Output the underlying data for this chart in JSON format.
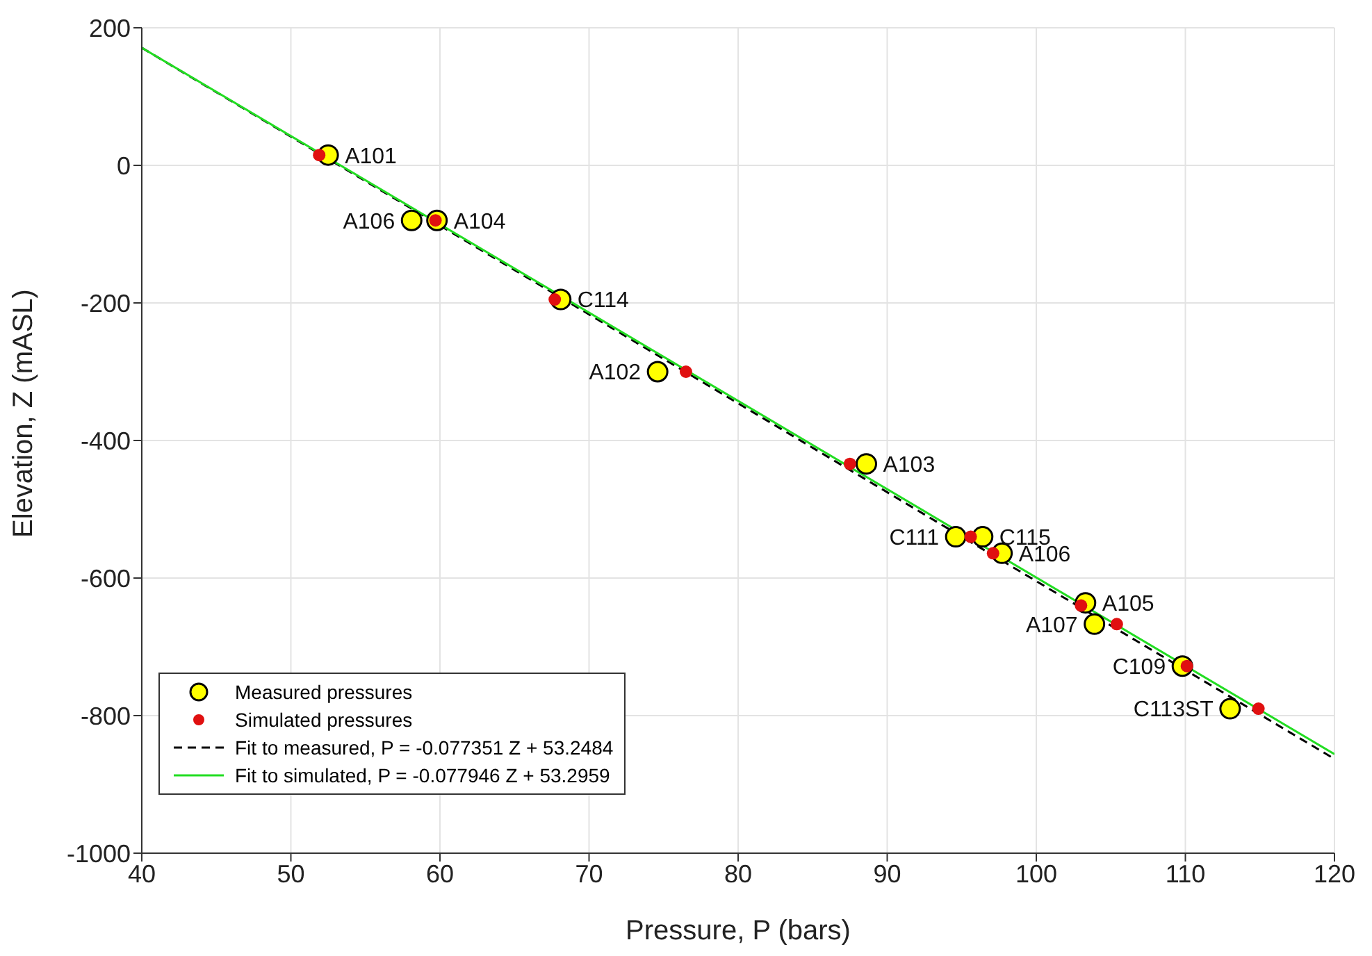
{
  "chart_data": {
    "type": "scatter",
    "xlabel": "Pressure, P (bars)",
    "ylabel": "Elevation, Z (mASL)",
    "xlim": [
      40,
      120
    ],
    "xticks": [
      40,
      50,
      60,
      70,
      80,
      90,
      100,
      110,
      120
    ],
    "ylim": [
      -1000,
      200
    ],
    "yticks": [
      -1000,
      -800,
      -600,
      -400,
      -200,
      0,
      200
    ],
    "grid": true,
    "legend": "bottom left",
    "series": [
      {
        "name": "Measured pressures",
        "marker": "circle",
        "color": "#ffff00",
        "x": [
          52.5,
          58.1,
          59.8,
          68.1,
          74.6,
          88.6,
          94.6,
          96.4,
          97.7,
          103.3,
          103.9,
          109.8,
          113.0
        ],
        "values": [
          15,
          -80,
          -80,
          -195,
          -300,
          -434,
          -540,
          -540,
          -564,
          -636,
          -667,
          -728,
          -790
        ]
      },
      {
        "name": "Simulated pressures",
        "marker": "circle",
        "color": "#e01010",
        "x": [
          51.9,
          59.6,
          59.7,
          67.7,
          76.5,
          87.5,
          95.3,
          95.6,
          97.1,
          103.0,
          105.4,
          110.1,
          114.9
        ],
        "values": [
          15,
          null,
          -80,
          -195,
          -300,
          -434,
          null,
          -540,
          -564,
          -640,
          -667,
          -728,
          -790
        ]
      },
      {
        "name": "Fit to measured, P = -0.077351 Z + 53.2484",
        "type": "line",
        "line_style": "dashed",
        "color": "#000000",
        "x": [
          40,
          120
        ],
        "values": [
          171,
          -863
        ]
      },
      {
        "name": "Fit to simulated, P = -0.077946 Z + 53.2959",
        "type": "line",
        "line_style": "solid",
        "color": "#22dd22",
        "x": [
          40,
          120
        ],
        "values": [
          171,
          -856
        ]
      }
    ],
    "annotations": [
      {
        "text": "A101",
        "x": 52.5,
        "y": 15
      },
      {
        "text": "A106",
        "x": 58.1,
        "y": -80
      },
      {
        "text": "A104",
        "x": 59.8,
        "y": -80
      },
      {
        "text": "C114",
        "x": 68.1,
        "y": -195
      },
      {
        "text": "A102",
        "x": 74.6,
        "y": -300
      },
      {
        "text": "A103",
        "x": 88.6,
        "y": -434
      },
      {
        "text": "C111",
        "x": 94.6,
        "y": -540
      },
      {
        "text": "C115",
        "x": 96.4,
        "y": -540
      },
      {
        "text": "A106",
        "x": 97.7,
        "y": -564
      },
      {
        "text": "A105",
        "x": 103.3,
        "y": -636
      },
      {
        "text": "A107",
        "x": 103.9,
        "y": -667
      },
      {
        "text": "C109",
        "x": 109.8,
        "y": -728
      },
      {
        "text": "C113ST",
        "x": 113.0,
        "y": -790
      }
    ]
  }
}
